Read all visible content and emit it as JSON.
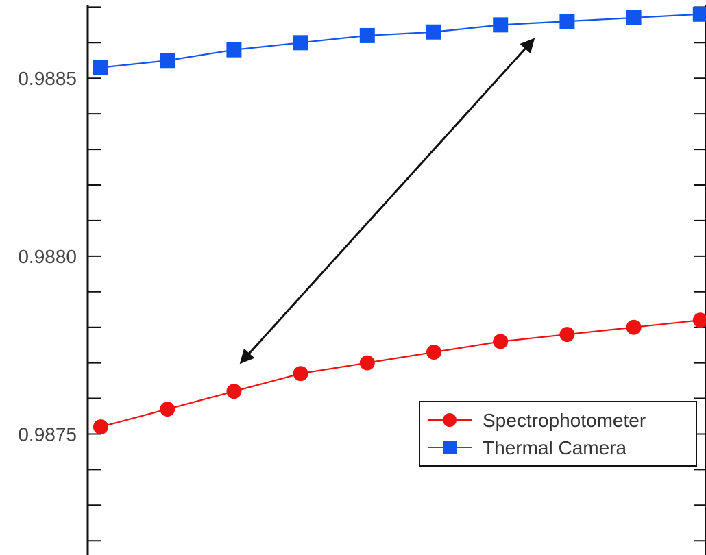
{
  "colors": {
    "spectrophotometer": "#ee1111",
    "thermal_camera": "#1155ee",
    "axis": "#111111",
    "annotation_arrow": "#111111"
  },
  "chart_data": {
    "type": "line",
    "title": "",
    "xlabel": "",
    "ylabel": "",
    "ylim": [
      0.98716,
      0.98872
    ],
    "yticks": [
      0.9875,
      0.988,
      0.9885
    ],
    "ytick_labels": [
      "0.9875",
      "0.9880",
      "0.9885"
    ],
    "x": [
      1,
      2,
      3,
      4,
      5,
      6,
      7,
      8,
      9,
      10
    ],
    "grid": false,
    "legend_position": "right",
    "series": [
      {
        "name": "Spectrophotometer",
        "marker": "circle",
        "color": "#ee1111",
        "values": [
          0.98752,
          0.98757,
          0.98762,
          0.98767,
          0.9877,
          0.98773,
          0.98776,
          0.98778,
          0.9878,
          0.98782
        ]
      },
      {
        "name": "Thermal Camera",
        "marker": "square",
        "color": "#1155ee",
        "values": [
          0.98853,
          0.98855,
          0.98858,
          0.9886,
          0.98862,
          0.98863,
          0.98865,
          0.98866,
          0.98867,
          0.98868
        ]
      }
    ],
    "annotations": [
      {
        "type": "double-arrow",
        "from": {
          "x": 3.1,
          "y": 0.9877
        },
        "to": {
          "x": 7.5,
          "y": 0.98861
        }
      }
    ]
  }
}
